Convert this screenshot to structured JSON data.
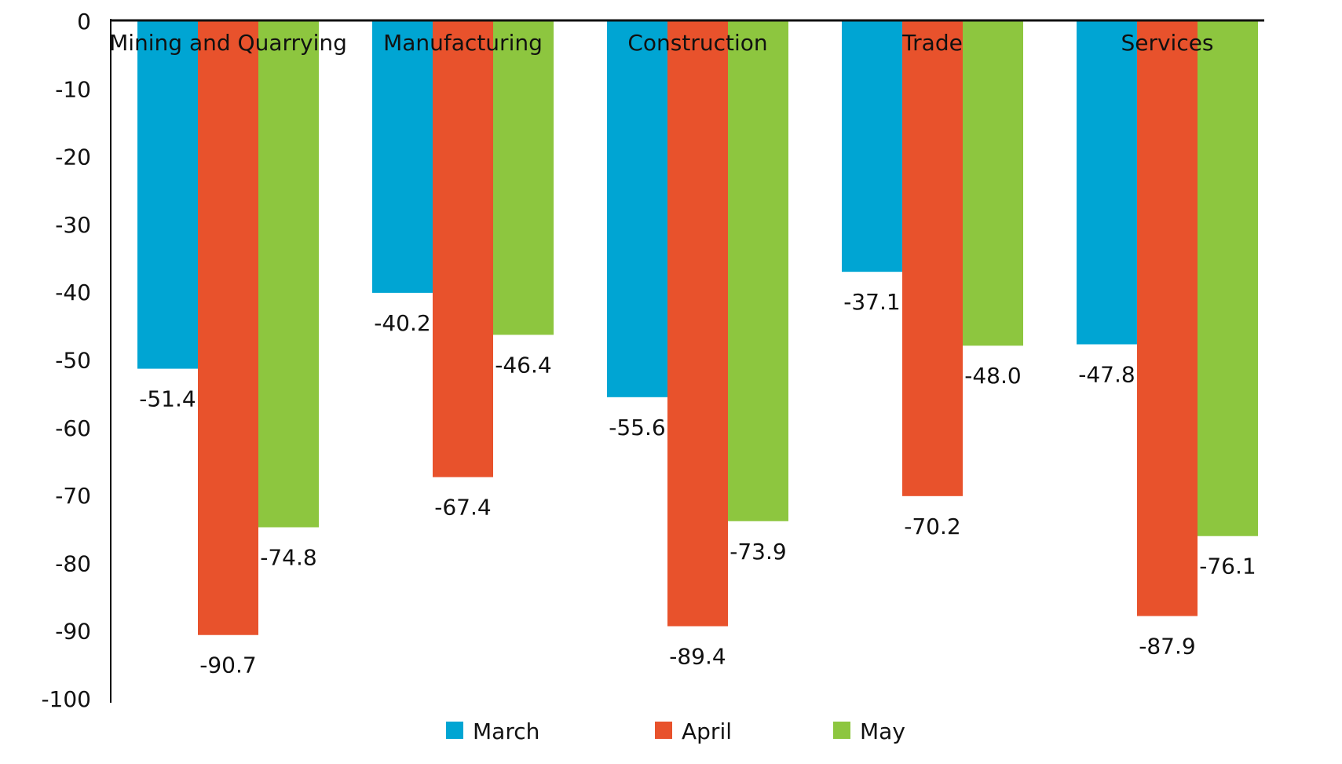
{
  "chart_data": {
    "type": "bar",
    "categories": [
      "Mining and Quarrying",
      "Manufacturing",
      "Construction",
      "Trade",
      "Services"
    ],
    "series": [
      {
        "name": "March",
        "color": "#00a5d3",
        "values": [
          -51.4,
          -40.2,
          -55.6,
          -37.1,
          -47.8
        ]
      },
      {
        "name": "April",
        "color": "#e8522c",
        "values": [
          -90.7,
          -67.4,
          -89.4,
          -70.2,
          -87.9
        ]
      },
      {
        "name": "May",
        "color": "#8dc63f",
        "values": [
          -74.8,
          -46.4,
          -73.9,
          -48.0,
          -76.1
        ]
      }
    ],
    "value_labels": [
      [
        "-51.4",
        "-40.2",
        "-55.6",
        "-37.1",
        "-47.8"
      ],
      [
        "-90.7",
        "-67.4",
        "-89.4",
        "-70.2",
        "-87.9"
      ],
      [
        "-74.8",
        "-46.4",
        "-73.9",
        "-48.0",
        "-76.1"
      ]
    ],
    "ylim": [
      -100,
      0
    ],
    "yticks": [
      0,
      -10,
      -20,
      -30,
      -40,
      -50,
      -60,
      -70,
      -80,
      -90,
      -100
    ],
    "grid": false,
    "legend_position": "bottom",
    "category_labels_position": "top"
  }
}
